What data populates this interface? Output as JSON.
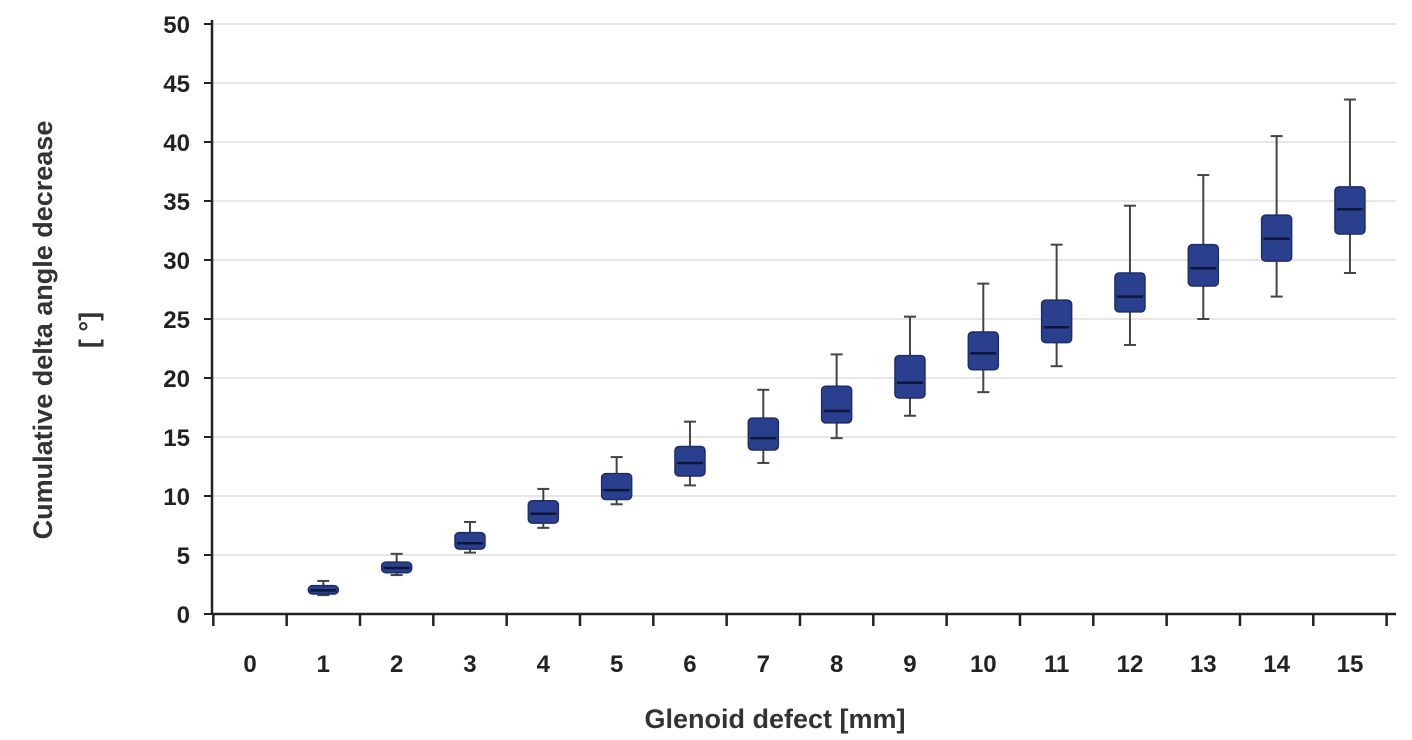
{
  "chart_data": {
    "type": "box",
    "xlabel": "Glenoid defect [mm]",
    "ylabel_line1": "Cumulative delta angle decrease",
    "ylabel_line2": "[ °]",
    "ylim": [
      0,
      50
    ],
    "yticks": [
      0,
      5,
      10,
      15,
      20,
      25,
      30,
      35,
      40,
      45,
      50
    ],
    "categories": [
      "0",
      "1",
      "2",
      "3",
      "4",
      "5",
      "6",
      "7",
      "8",
      "9",
      "10",
      "11",
      "12",
      "13",
      "14",
      "15"
    ],
    "grid": "horizontal",
    "box_color": "#2b3f8f",
    "boxes": [
      {
        "x": "0",
        "min": null,
        "q1": null,
        "median": null,
        "q3": null,
        "max": null
      },
      {
        "x": "1",
        "min": 1.6,
        "q1": 1.7,
        "median": 2.0,
        "q3": 2.4,
        "max": 2.8
      },
      {
        "x": "2",
        "min": 3.3,
        "q1": 3.5,
        "median": 3.9,
        "q3": 4.4,
        "max": 5.1
      },
      {
        "x": "3",
        "min": 5.2,
        "q1": 5.5,
        "median": 6.0,
        "q3": 6.9,
        "max": 7.8
      },
      {
        "x": "4",
        "min": 7.3,
        "q1": 7.7,
        "median": 8.5,
        "q3": 9.6,
        "max": 10.6
      },
      {
        "x": "5",
        "min": 9.3,
        "q1": 9.7,
        "median": 10.5,
        "q3": 11.9,
        "max": 13.3
      },
      {
        "x": "6",
        "min": 10.9,
        "q1": 11.7,
        "median": 12.8,
        "q3": 14.2,
        "max": 16.3
      },
      {
        "x": "7",
        "min": 12.8,
        "q1": 13.9,
        "median": 14.9,
        "q3": 16.6,
        "max": 19.0
      },
      {
        "x": "8",
        "min": 14.9,
        "q1": 16.2,
        "median": 17.2,
        "q3": 19.3,
        "max": 22.0
      },
      {
        "x": "9",
        "min": 16.8,
        "q1": 18.3,
        "median": 19.6,
        "q3": 21.9,
        "max": 25.2
      },
      {
        "x": "10",
        "min": 18.8,
        "q1": 20.7,
        "median": 22.1,
        "q3": 23.9,
        "max": 28.0
      },
      {
        "x": "11",
        "min": 21.0,
        "q1": 23.0,
        "median": 24.3,
        "q3": 26.6,
        "max": 31.3
      },
      {
        "x": "12",
        "min": 22.8,
        "q1": 25.6,
        "median": 26.9,
        "q3": 28.9,
        "max": 34.6
      },
      {
        "x": "13",
        "min": 25.0,
        "q1": 27.8,
        "median": 29.3,
        "q3": 31.3,
        "max": 37.2
      },
      {
        "x": "14",
        "min": 26.9,
        "q1": 29.9,
        "median": 31.8,
        "q3": 33.8,
        "max": 40.5
      },
      {
        "x": "15",
        "min": 28.9,
        "q1": 32.2,
        "median": 34.3,
        "q3": 36.2,
        "max": 43.6
      }
    ]
  }
}
